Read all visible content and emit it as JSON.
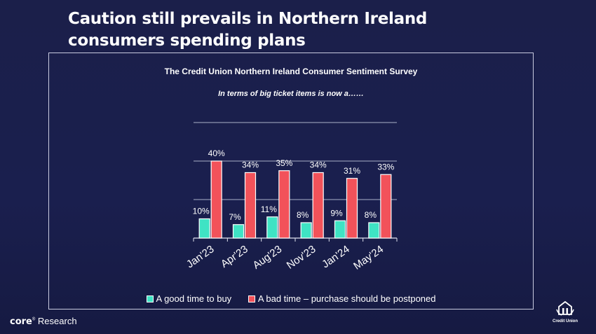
{
  "slide": {
    "title_line1": "Caution still prevails in Northern Ireland",
    "title_line2": "consumers spending plans"
  },
  "survey": {
    "title": "The Credit Union Northern Ireland Consumer Sentiment Survey",
    "subtitle": "In terms of big ticket items is now a……"
  },
  "chart_data": {
    "type": "bar",
    "categories": [
      "Jan'23",
      "Apr'23",
      "Aug'23",
      "Nov'23",
      "Jan'24",
      "May'24"
    ],
    "series": [
      {
        "name": "A good time to buy",
        "values": [
          10,
          7,
          11,
          8,
          9,
          8
        ],
        "color": "#3fe3c4"
      },
      {
        "name": "A bad time – purchase should be postponed",
        "values": [
          40,
          34,
          35,
          34,
          31,
          33
        ],
        "color": "#f2525a"
      }
    ],
    "value_suffix": "%",
    "ylim": [
      0,
      60
    ],
    "gridlines": [
      20,
      40,
      60
    ],
    "y_axis_labels": false,
    "legend_position": "bottom"
  },
  "branding": {
    "core_word": "core",
    "core_suffix": "Research",
    "credit_union": "Credit Union"
  }
}
